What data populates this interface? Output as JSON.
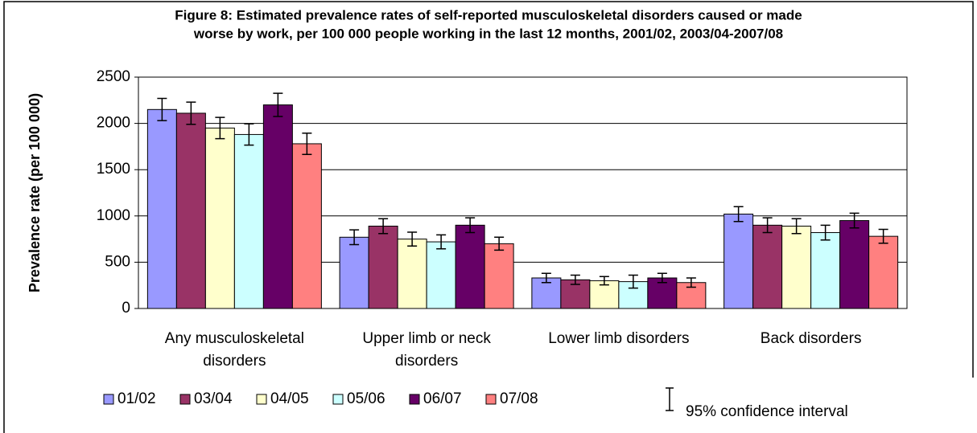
{
  "chart_data": {
    "type": "bar",
    "title": [
      "Figure 8:  Estimated prevalence rates of self-reported musculoskeletal disorders caused or made",
      "worse by work, per 100 000 people working in the last 12 months, 2001/02, 2003/04-2007/08"
    ],
    "y_label": "Prevalence rate (per 100 000)",
    "categories": [
      "Any musculoskeletal disorders",
      "Upper limb or neck disorders",
      "Lower limb disorders",
      "Back disorders"
    ],
    "series": [
      {
        "name": "01/02",
        "color": "#9999ff",
        "values": [
          2150,
          770,
          330,
          1020
        ],
        "errors": [
          120,
          80,
          50,
          80
        ]
      },
      {
        "name": "03/04",
        "color": "#993366",
        "values": [
          2110,
          890,
          310,
          900
        ],
        "errors": [
          120,
          80,
          50,
          80
        ]
      },
      {
        "name": "04/05",
        "color": "#ffffcc",
        "values": [
          1950,
          750,
          300,
          890
        ],
        "errors": [
          115,
          75,
          45,
          80
        ]
      },
      {
        "name": "05/06",
        "color": "#ccffff",
        "values": [
          1880,
          720,
          290,
          820
        ],
        "errors": [
          115,
          75,
          70,
          80
        ]
      },
      {
        "name": "06/07",
        "color": "#660066",
        "values": [
          2200,
          900,
          330,
          950
        ],
        "errors": [
          125,
          80,
          50,
          80
        ]
      },
      {
        "name": "07/08",
        "color": "#ff8080",
        "values": [
          1780,
          700,
          280,
          780
        ],
        "errors": [
          115,
          70,
          50,
          75
        ]
      }
    ],
    "ci_label": "95% confidence interval",
    "ylim": [
      0,
      2500
    ],
    "yticks": [
      0,
      500,
      1000,
      1500,
      2000,
      2500
    ],
    "grid": true,
    "legend": "bottom"
  }
}
